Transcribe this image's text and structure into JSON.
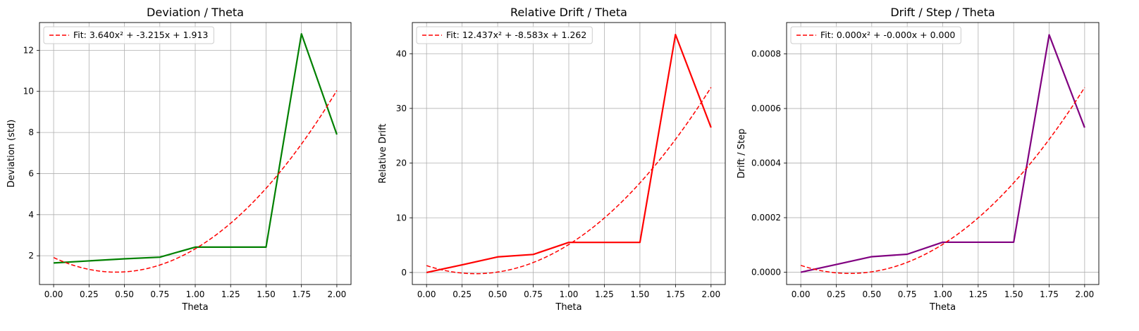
{
  "chart_data": [
    {
      "type": "line",
      "title": "Deviation / Theta",
      "xlabel": "Theta",
      "ylabel": "Deviation (std)",
      "xlim": [
        -0.1,
        2.1
      ],
      "ylim": [
        0.6,
        13.35
      ],
      "xticks": [
        0.0,
        0.25,
        0.5,
        0.75,
        1.0,
        1.25,
        1.5,
        1.75,
        2.0
      ],
      "xtick_labels": [
        "0.00",
        "0.25",
        "0.50",
        "0.75",
        "1.00",
        "1.25",
        "1.50",
        "1.75",
        "2.00"
      ],
      "yticks": [
        2,
        4,
        6,
        8,
        10,
        12
      ],
      "ytick_labels": [
        "2",
        "4",
        "6",
        "8",
        "10",
        "12"
      ],
      "grid": true,
      "legend_position": "top-left",
      "series": [
        {
          "x": [
            0.0,
            0.25,
            0.5,
            0.75,
            1.0,
            1.25,
            1.5,
            1.75,
            2.0
          ],
          "y": [
            1.65,
            1.75,
            1.85,
            1.93,
            2.42,
            2.42,
            2.42,
            12.8,
            7.9
          ],
          "color": "#008000",
          "style": "solid"
        },
        {
          "name": "Fit: 3.640x² + -3.215x + 1.913",
          "fit_coefficients": [
            3.64,
            -3.215,
            1.913
          ],
          "x_range": [
            0.0,
            2.0
          ],
          "color": "#ff0000",
          "style": "dashed"
        }
      ]
    },
    {
      "type": "line",
      "title": "Relative Drift / Theta",
      "xlabel": "Theta",
      "ylabel": "Relative Drift",
      "xlim": [
        -0.1,
        2.1
      ],
      "ylim": [
        -2.2,
        45.7
      ],
      "xticks": [
        0.0,
        0.25,
        0.5,
        0.75,
        1.0,
        1.25,
        1.5,
        1.75,
        2.0
      ],
      "xtick_labels": [
        "0.00",
        "0.25",
        "0.50",
        "0.75",
        "1.00",
        "1.25",
        "1.50",
        "1.75",
        "2.00"
      ],
      "yticks": [
        0,
        10,
        20,
        30,
        40
      ],
      "ytick_labels": [
        "0",
        "10",
        "20",
        "30",
        "40"
      ],
      "grid": true,
      "legend_position": "top-left",
      "series": [
        {
          "x": [
            0.0,
            0.25,
            0.5,
            0.75,
            1.0,
            1.25,
            1.5,
            1.75,
            2.0
          ],
          "y": [
            0.0,
            1.4,
            2.85,
            3.3,
            5.5,
            5.5,
            5.5,
            43.5,
            26.5
          ],
          "color": "#ff0000",
          "style": "solid"
        },
        {
          "name": "Fit: 12.437x² + -8.583x + 1.262",
          "fit_coefficients": [
            12.437,
            -8.583,
            1.262
          ],
          "x_range": [
            0.0,
            2.0
          ],
          "color": "#ff0000",
          "style": "dashed"
        }
      ]
    },
    {
      "type": "line",
      "title": "Drift / Step / Theta",
      "xlabel": "Theta",
      "ylabel": "Drift / Step",
      "xlim": [
        -0.1,
        2.1
      ],
      "ylim": [
        -4.5e-05,
        0.000915
      ],
      "xticks": [
        0.0,
        0.25,
        0.5,
        0.75,
        1.0,
        1.25,
        1.5,
        1.75,
        2.0
      ],
      "xtick_labels": [
        "0.00",
        "0.25",
        "0.50",
        "0.75",
        "1.00",
        "1.25",
        "1.50",
        "1.75",
        "2.00"
      ],
      "yticks": [
        0.0,
        0.0002,
        0.0004,
        0.0006,
        0.0008
      ],
      "ytick_labels": [
        "0.0000",
        "0.0002",
        "0.0004",
        "0.0006",
        "0.0008"
      ],
      "grid": true,
      "legend_position": "top-left",
      "series": [
        {
          "x": [
            0.0,
            0.25,
            0.5,
            0.75,
            1.0,
            1.25,
            1.5,
            1.75,
            2.0
          ],
          "y": [
            0.0,
            2.85e-05,
            5.7e-05,
            6.6e-05,
            0.00011,
            0.00011,
            0.00011,
            0.00087,
            0.00053
          ],
          "color": "#800080",
          "style": "solid"
        },
        {
          "name": "Fit: 0.000x² + -0.000x + 0.000",
          "fit_coefficients": [
            0.000249,
            -0.000172,
            2.52e-05
          ],
          "x_range": [
            0.0,
            2.0
          ],
          "color": "#ff0000",
          "style": "dashed"
        }
      ]
    }
  ]
}
